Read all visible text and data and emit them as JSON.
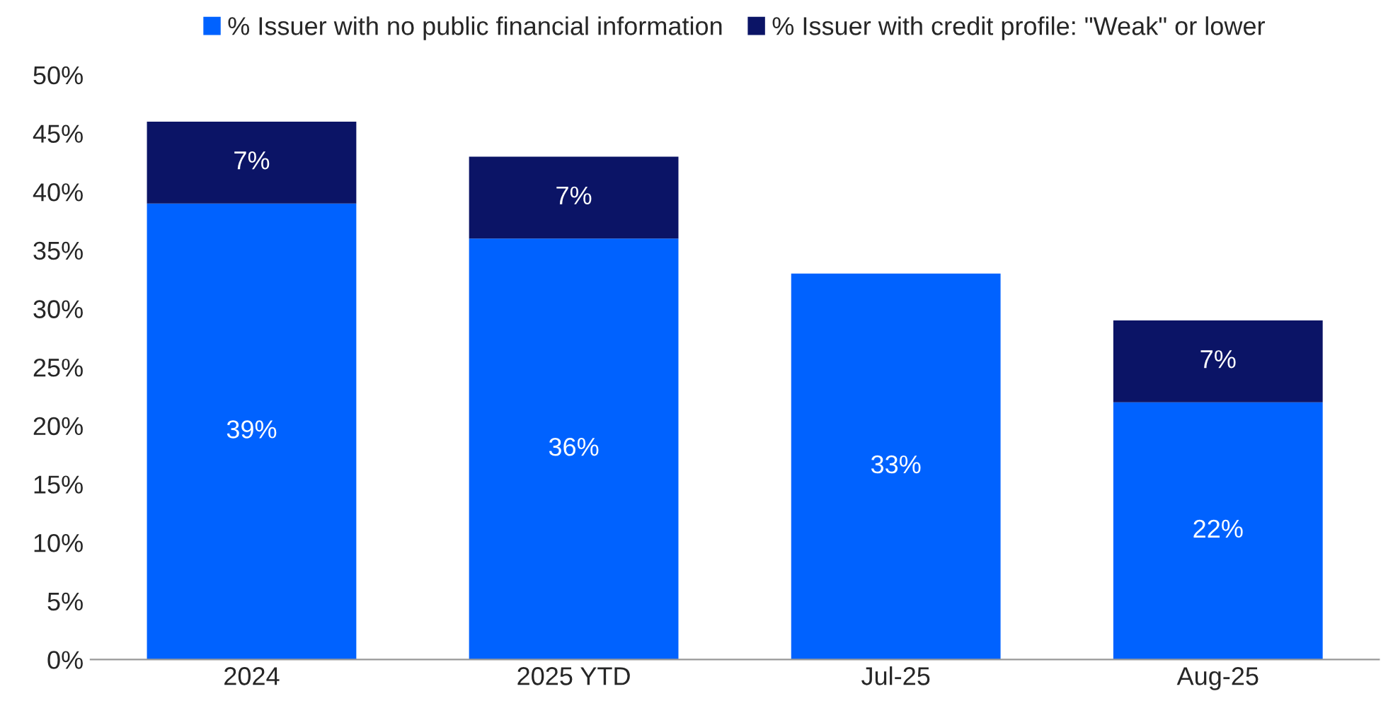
{
  "chart_data": {
    "type": "bar",
    "stacked": true,
    "categories": [
      "2024",
      "2025 YTD",
      "Jul-25",
      "Aug-25"
    ],
    "series": [
      {
        "name": "% Issuer with no public financial information",
        "color": "#0062ff",
        "values": [
          39,
          36,
          33,
          22
        ],
        "value_labels": [
          "39%",
          "36%",
          "33%",
          "22%"
        ]
      },
      {
        "name": "% Issuer with credit profile: \"Weak\" or lower",
        "color": "#0b1466",
        "values": [
          7,
          7,
          null,
          7
        ],
        "value_labels": [
          "7%",
          "7%",
          null,
          "7%"
        ]
      }
    ],
    "ylim": [
      0,
      50
    ],
    "yticks": [
      {
        "value": 0,
        "label": "0%"
      },
      {
        "value": 5,
        "label": "5%"
      },
      {
        "value": 10,
        "label": "10%"
      },
      {
        "value": 15,
        "label": "15%"
      },
      {
        "value": 20,
        "label": "20%"
      },
      {
        "value": 25,
        "label": "25%"
      },
      {
        "value": 30,
        "label": "30%"
      },
      {
        "value": 35,
        "label": "35%"
      },
      {
        "value": 40,
        "label": "40%"
      },
      {
        "value": 45,
        "label": "45%"
      },
      {
        "value": 50,
        "label": "50%"
      }
    ],
    "grid": false,
    "legend": "top"
  }
}
